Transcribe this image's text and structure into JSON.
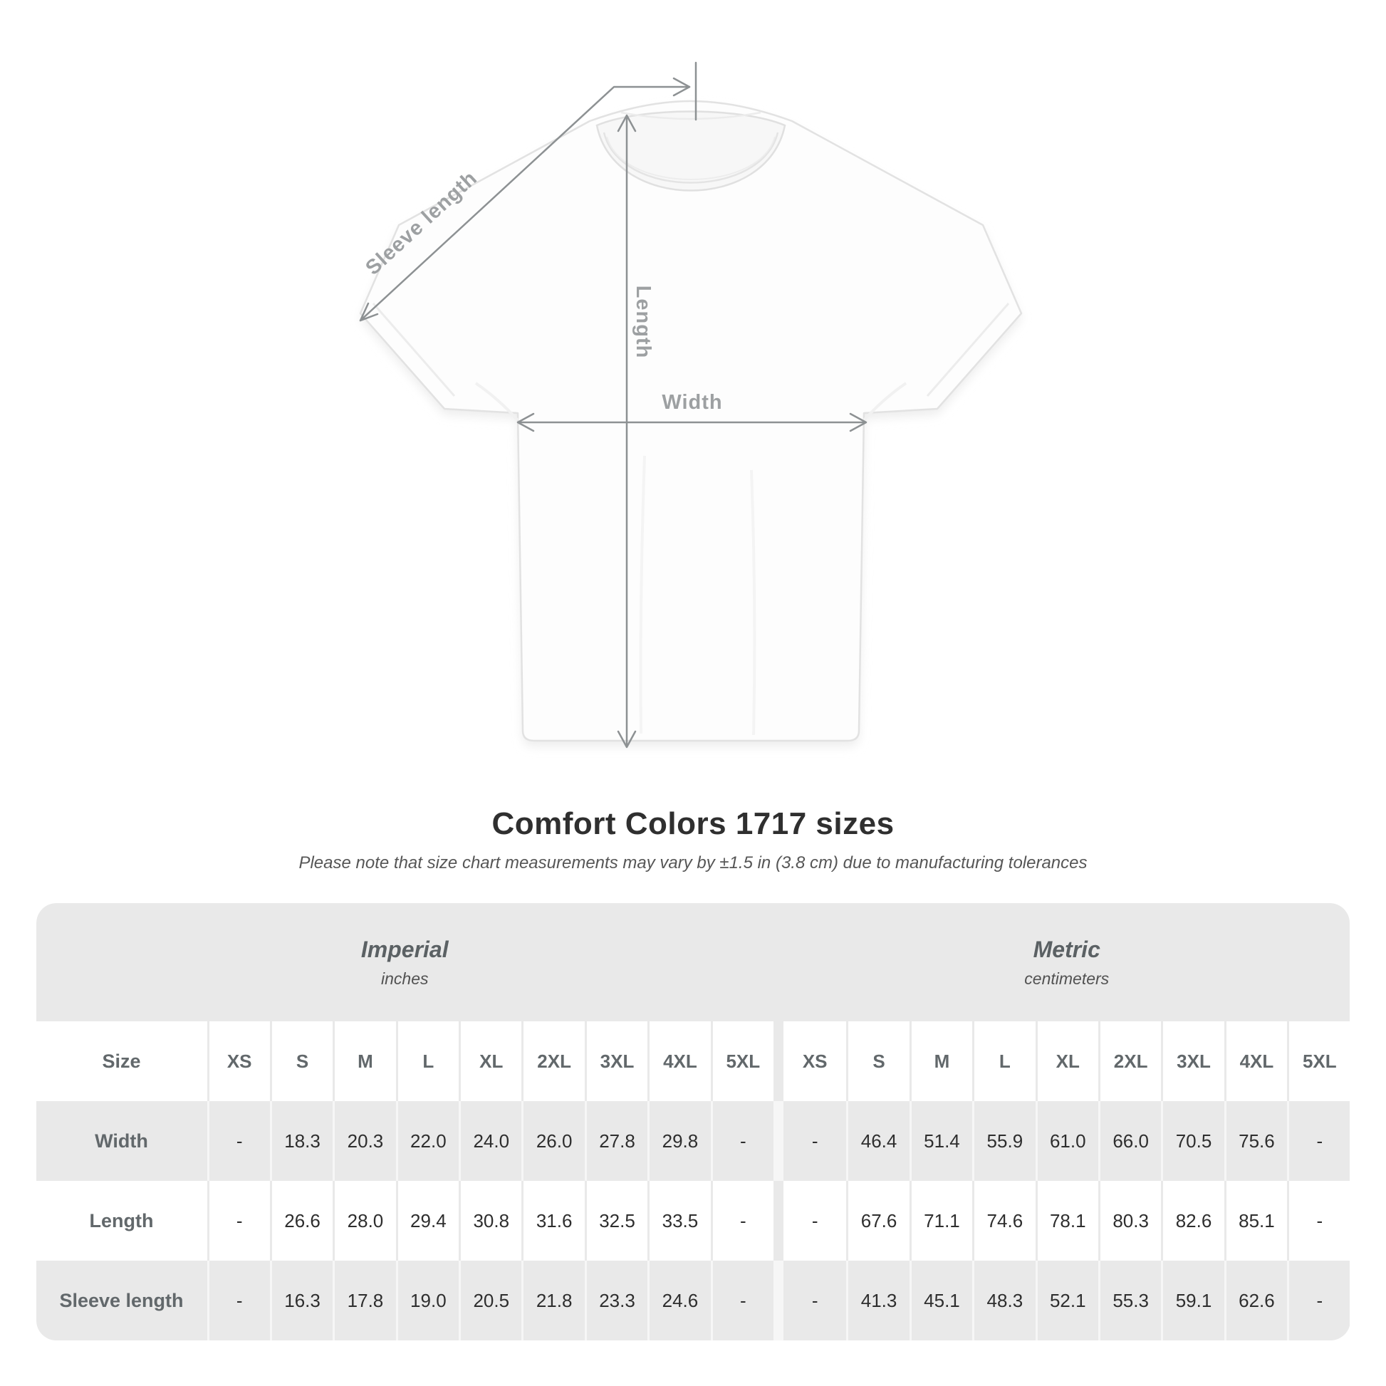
{
  "diagram": {
    "labels": {
      "sleeve_length": "Sleeve length",
      "length": "Length",
      "width": "Width"
    }
  },
  "header": {
    "title": "Comfort Colors 1717 sizes",
    "subtitle": "Please note that size chart measurements may vary by ±1.5 in (3.8 cm) due to manufacturing tolerances"
  },
  "table": {
    "groups": [
      {
        "label": "Imperial",
        "sublabel": "inches"
      },
      {
        "label": "Metric",
        "sublabel": "centimeters"
      }
    ],
    "size_header_label": "Size",
    "sizes": [
      "XS",
      "S",
      "M",
      "L",
      "XL",
      "2XL",
      "3XL",
      "4XL",
      "5XL"
    ],
    "rows": [
      {
        "label": "Width",
        "imperial": [
          "-",
          "18.3",
          "20.3",
          "22.0",
          "24.0",
          "26.0",
          "27.8",
          "29.8",
          "-"
        ],
        "metric": [
          "-",
          "46.4",
          "51.4",
          "55.9",
          "61.0",
          "66.0",
          "70.5",
          "75.6",
          "-"
        ]
      },
      {
        "label": "Length",
        "imperial": [
          "-",
          "26.6",
          "28.0",
          "29.4",
          "30.8",
          "31.6",
          "32.5",
          "33.5",
          "-"
        ],
        "metric": [
          "-",
          "67.6",
          "71.1",
          "74.6",
          "78.1",
          "80.3",
          "82.6",
          "85.1",
          "-"
        ]
      },
      {
        "label": "Sleeve length",
        "imperial": [
          "-",
          "16.3",
          "17.8",
          "19.0",
          "20.5",
          "21.8",
          "23.3",
          "24.6",
          "-"
        ],
        "metric": [
          "-",
          "41.3",
          "45.1",
          "48.3",
          "52.1",
          "55.3",
          "59.1",
          "62.6",
          "-"
        ]
      }
    ]
  },
  "colors": {
    "table_band_gray": "#e9e9e9",
    "annotation_line": "#8d9193",
    "annotation_text": "#9da0a2",
    "title_text": "#2f2f2f",
    "value_text": "#2e2e2e"
  }
}
